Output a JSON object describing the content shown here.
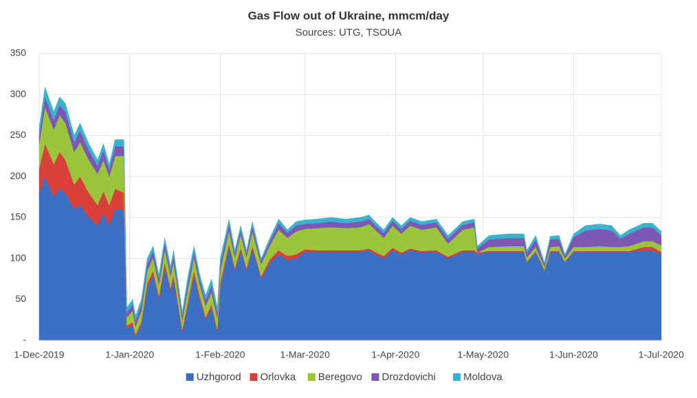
{
  "chart_data": {
    "type": "stacked_area",
    "title": "Gas Flow out of Ukraine, mmcm/day",
    "subtitle": "Sources: UTG, TSOUA",
    "x": [
      "2019-12-01",
      "2019-12-03",
      "2019-12-06",
      "2019-12-08",
      "2019-12-10",
      "2019-12-13",
      "2019-12-15",
      "2019-12-18",
      "2019-12-21",
      "2019-12-23",
      "2019-12-25",
      "2019-12-27",
      "2019-12-30",
      "2019-12-31",
      "2020-01-02",
      "2020-01-03",
      "2020-01-05",
      "2020-01-07",
      "2020-01-09",
      "2020-01-11",
      "2020-01-13",
      "2020-01-15",
      "2020-01-16",
      "2020-01-19",
      "2020-01-21",
      "2020-01-23",
      "2020-01-25",
      "2020-01-27",
      "2020-01-29",
      "2020-01-31",
      "2020-02-01",
      "2020-02-04",
      "2020-02-06",
      "2020-02-08",
      "2020-02-10",
      "2020-02-12",
      "2020-02-15",
      "2020-02-18",
      "2020-02-21",
      "2020-02-24",
      "2020-02-27",
      "2020-03-01",
      "2020-03-05",
      "2020-03-10",
      "2020-03-15",
      "2020-03-20",
      "2020-03-23",
      "2020-03-25",
      "2020-03-28",
      "2020-03-31",
      "2020-04-03",
      "2020-04-06",
      "2020-04-10",
      "2020-04-15",
      "2020-04-19",
      "2020-04-24",
      "2020-04-28",
      "2020-04-29",
      "2020-05-03",
      "2020-05-10",
      "2020-05-15",
      "2020-05-16",
      "2020-05-19",
      "2020-05-22",
      "2020-05-24",
      "2020-05-27",
      "2020-05-29",
      "2020-06-01",
      "2020-06-05",
      "2020-06-10",
      "2020-06-14",
      "2020-06-17",
      "2020-06-20",
      "2020-06-25",
      "2020-06-28",
      "2020-07-01"
    ],
    "series": [
      {
        "name": "Uzhgorod",
        "color": "#3a6fc4",
        "values": [
          180,
          200,
          175,
          185,
          180,
          160,
          165,
          150,
          140,
          155,
          140,
          160,
          160,
          15,
          18,
          5,
          20,
          65,
          80,
          50,
          90,
          60,
          75,
          10,
          45,
          80,
          50,
          25,
          40,
          10,
          65,
          115,
          85,
          110,
          85,
          112,
          75,
          95,
          105,
          98,
          100,
          108,
          108,
          108,
          108,
          108,
          110,
          105,
          100,
          110,
          105,
          110,
          107,
          108,
          100,
          108,
          108,
          105,
          108,
          108,
          108,
          95,
          108,
          85,
          108,
          108,
          95,
          108,
          108,
          108,
          108,
          108,
          108,
          110,
          110,
          105
        ]
      },
      {
        "name": "Orlovka",
        "color": "#d9403a",
        "values": [
          30,
          40,
          40,
          45,
          40,
          30,
          35,
          30,
          25,
          27,
          25,
          25,
          20,
          3,
          4,
          2,
          3,
          5,
          5,
          4,
          5,
          4,
          5,
          3,
          4,
          5,
          4,
          3,
          4,
          3,
          5,
          3,
          3,
          3,
          3,
          3,
          3,
          4,
          5,
          5,
          5,
          3,
          2,
          2,
          2,
          2,
          2,
          3,
          3,
          3,
          2,
          2,
          2,
          2,
          2,
          2,
          2,
          2,
          1,
          1,
          1,
          1,
          1,
          1,
          1,
          1,
          1,
          1,
          1,
          1,
          1,
          1,
          1,
          4,
          4,
          3
        ]
      },
      {
        "name": "Beregovo",
        "color": "#9bc53d",
        "values": [
          30,
          45,
          42,
          45,
          45,
          40,
          42,
          40,
          38,
          38,
          35,
          40,
          45,
          10,
          14,
          10,
          13,
          15,
          16,
          14,
          16,
          14,
          16,
          12,
          15,
          16,
          14,
          14,
          15,
          14,
          15,
          16,
          13,
          16,
          14,
          18,
          15,
          17,
          25,
          22,
          28,
          25,
          27,
          28,
          27,
          28,
          30,
          27,
          22,
          27,
          23,
          28,
          26,
          28,
          16,
          25,
          28,
          0,
          5,
          6,
          6,
          5,
          5,
          4,
          5,
          6,
          4,
          5,
          5,
          6,
          5,
          5,
          6,
          7,
          7,
          8
        ]
      },
      {
        "name": "Drozdovichi",
        "color": "#7d57b5",
        "values": [
          10,
          12,
          12,
          12,
          14,
          12,
          14,
          12,
          10,
          12,
          9,
          12,
          12,
          6,
          8,
          7,
          8,
          8,
          8,
          7,
          8,
          7,
          8,
          6,
          8,
          8,
          7,
          7,
          8,
          7,
          8,
          8,
          5,
          6,
          5,
          7,
          4,
          5,
          8,
          6,
          7,
          6,
          6,
          7,
          6,
          7,
          6,
          6,
          6,
          6,
          6,
          6,
          6,
          6,
          6,
          6,
          6,
          5,
          9,
          10,
          10,
          6,
          9,
          3,
          9,
          9,
          3,
          12,
          20,
          21,
          20,
          10,
          15,
          17,
          17,
          12
        ]
      },
      {
        "name": "Moldova",
        "color": "#3bb3cc",
        "values": [
          10,
          12,
          10,
          10,
          10,
          8,
          9,
          8,
          7,
          8,
          6,
          8,
          8,
          6,
          6,
          6,
          6,
          7,
          6,
          5,
          6,
          5,
          6,
          4,
          8,
          6,
          5,
          6,
          8,
          6,
          7,
          6,
          4,
          5,
          3,
          5,
          3,
          4,
          5,
          4,
          5,
          5,
          5,
          5,
          5,
          5,
          5,
          4,
          4,
          4,
          4,
          4,
          4,
          4,
          4,
          4,
          4,
          3,
          5,
          5,
          5,
          3,
          5,
          2,
          4,
          4,
          2,
          4,
          6,
          6,
          6,
          4,
          5,
          5,
          5,
          5
        ]
      }
    ],
    "xlim": [
      "2019-12-01",
      "2020-07-01"
    ],
    "xticks": [
      {
        "value": "2019-12-01",
        "label": "1-Dec-2019"
      },
      {
        "value": "2020-01-01",
        "label": "1-Jan-2020"
      },
      {
        "value": "2020-02-01",
        "label": "1-Feb-2020"
      },
      {
        "value": "2020-03-01",
        "label": "1-Mar-2020"
      },
      {
        "value": "2020-04-01",
        "label": "1-Apr-2020"
      },
      {
        "value": "2020-05-01",
        "label": "1-May-2020"
      },
      {
        "value": "2020-06-01",
        "label": "1-Jun-2020"
      },
      {
        "value": "2020-07-01",
        "label": "1-Jul-2020"
      }
    ],
    "ylim": [
      0,
      350
    ],
    "yticks": [
      {
        "value": 0,
        "label": "-"
      },
      50,
      100,
      150,
      200,
      250,
      300,
      350
    ],
    "grid": true,
    "legend": "bottom"
  }
}
